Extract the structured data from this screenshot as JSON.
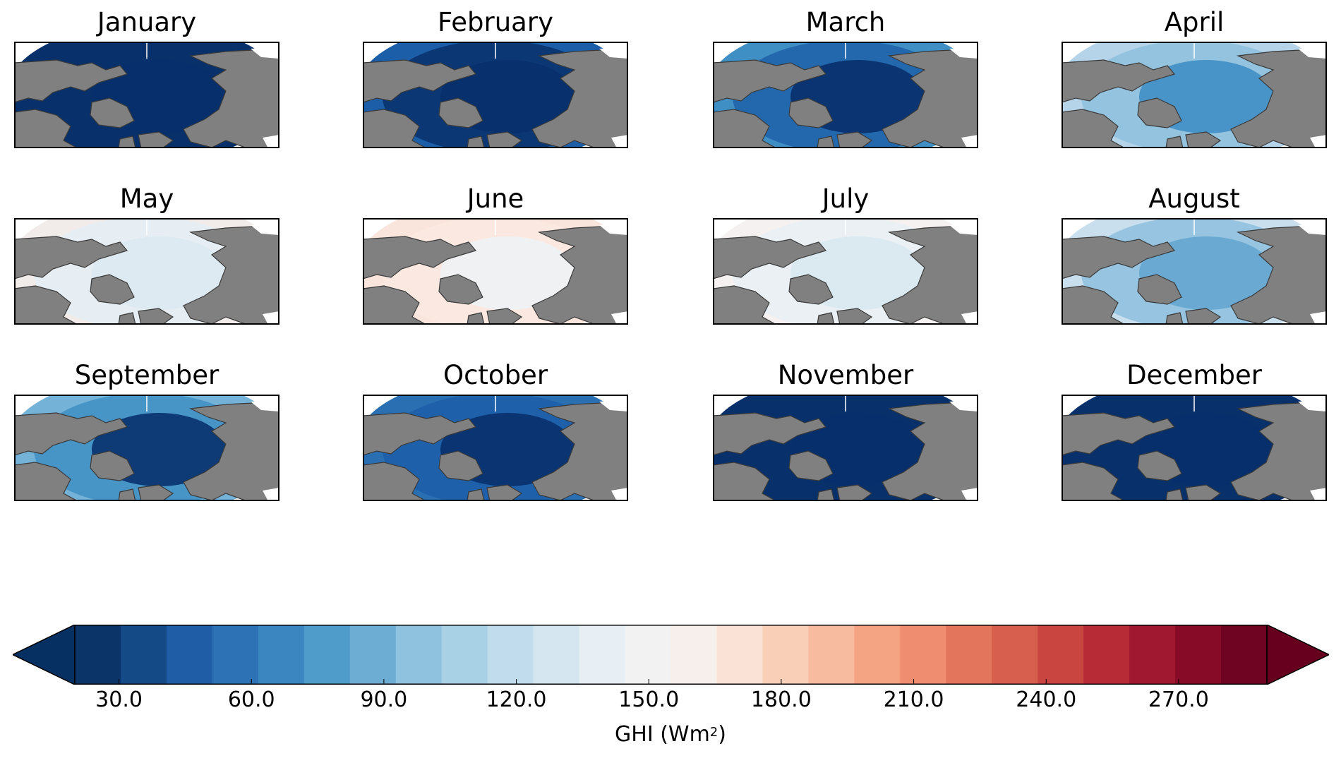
{
  "panels": [
    {
      "month": "January",
      "bg": "#08306b",
      "inner": "#08306b",
      "pole": "#08306b"
    },
    {
      "month": "February",
      "bg": "#1c5ea8",
      "inner": "#08306b",
      "pole": "#08306b"
    },
    {
      "month": "March",
      "bg": "#3f8ec4",
      "inner": "#1f62a9",
      "pole": "#08306b"
    },
    {
      "month": "April",
      "bg": "#b5d4e9",
      "inner": "#8ebfdd",
      "pole": "#3f8ec4"
    },
    {
      "month": "May",
      "bg": "#f1ecea",
      "inner": "#e4eef4",
      "pole": "#dbe9f2"
    },
    {
      "month": "June",
      "bg": "#f9e5db",
      "inner": "#fbeae2",
      "pole": "#eef2f5"
    },
    {
      "month": "July",
      "bg": "#f4f1f0",
      "inner": "#e8f0f4",
      "pole": "#d9e8f1"
    },
    {
      "month": "August",
      "bg": "#c9dfee",
      "inner": "#8ebfdd",
      "pole": "#64a6d0"
    },
    {
      "month": "September",
      "bg": "#74b2d8",
      "inner": "#3f8ec4",
      "pole": "#08306b"
    },
    {
      "month": "October",
      "bg": "#2a6fb2",
      "inner": "#1c5ea8",
      "pole": "#08306b"
    },
    {
      "month": "November",
      "bg": "#08306b",
      "inner": "#08306b",
      "pole": "#08306b"
    },
    {
      "month": "December",
      "bg": "#08306b",
      "inner": "#08306b",
      "pole": "#08306b"
    }
  ],
  "colorbar": {
    "label": "GHI (Wm",
    "label_sup": "2",
    "label_suffix": ")",
    "min": 20,
    "max": 290,
    "step": 10,
    "ticks": [
      "30.0",
      "60.0",
      "90.0",
      "120.0",
      "150.0",
      "180.0",
      "210.0",
      "240.0",
      "270.0"
    ],
    "tick_values": [
      30,
      60,
      90,
      120,
      150,
      180,
      210,
      240,
      270
    ],
    "under_color": "#053061",
    "over_color": "#67001f",
    "colors": [
      "#0b3569",
      "#144a86",
      "#1f5ea6",
      "#2d72b4",
      "#3b86c1",
      "#4f9bc9",
      "#6eadd3",
      "#8ec2df",
      "#a9d1e6",
      "#c1dcec",
      "#d6e6f1",
      "#e7eef4",
      "#f2f2f2",
      "#f7efec",
      "#fae3d6",
      "#f9d0b7",
      "#f7bb9f",
      "#f4a383",
      "#ee8d6f",
      "#e3755d",
      "#d65f4d",
      "#c94540",
      "#b72b36",
      "#a0182f",
      "#870b27",
      "#6e0322"
    ]
  },
  "land_color": "#808080",
  "ocean_blank_color": "#ffffff"
}
